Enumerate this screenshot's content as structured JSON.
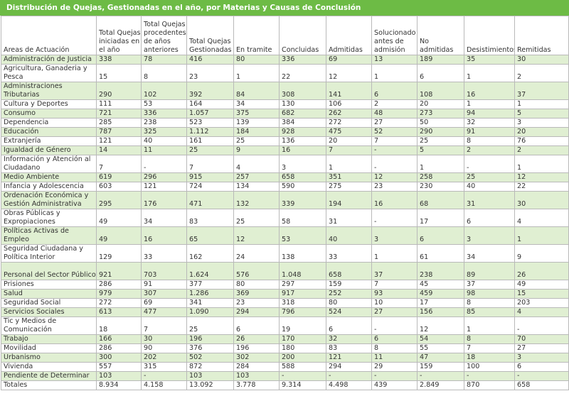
{
  "title": "Distribución de Quejas, Gestionadas en el año, por Materias y Causas de Conclusión",
  "headers": [
    "Areas de Actuación",
    "Total Quejas iniciadas en el año",
    "Total Quejas procedentes de años anteriores",
    "Total Quejas Gestionadas",
    "En tramite",
    "Concluidas",
    "Admitidas",
    "Solucionado antes de admisión",
    "No admitidas",
    "Desistimientos",
    "Remitidas"
  ],
  "rows": [
    {
      "area": "Administración de Justicia",
      "values": [
        "338",
        "78",
        "416",
        "80",
        "336",
        "69",
        "13",
        "189",
        "35",
        "30"
      ]
    },
    {
      "area": "Agricultura, Ganaderia y Pesca",
      "values": [
        "15",
        "8",
        "23",
        "1",
        "22",
        "12",
        "1",
        "6",
        "1",
        "2"
      ]
    },
    {
      "area": "Administraciones Tributarias",
      "values": [
        "290",
        "102",
        "392",
        "84",
        "308",
        "141",
        "6",
        "108",
        "16",
        "37"
      ]
    },
    {
      "area": "Cultura y Deportes",
      "values": [
        "111",
        "53",
        "164",
        "34",
        "130",
        "106",
        "2",
        "20",
        "1",
        "1"
      ]
    },
    {
      "area": "Consumo",
      "values": [
        "721",
        "336",
        "1.057",
        "375",
        "682",
        "262",
        "48",
        "273",
        "94",
        "5"
      ]
    },
    {
      "area": "Dependencia",
      "values": [
        "285",
        "238",
        "523",
        "139",
        "384",
        "272",
        "27",
        "50",
        "32",
        "3"
      ]
    },
    {
      "area": "Educación",
      "values": [
        "787",
        "325",
        "1.112",
        "184",
        "928",
        "475",
        "52",
        "290",
        "91",
        "20"
      ]
    },
    {
      "area": "Extranjería",
      "values": [
        "121",
        "40",
        "161",
        "25",
        "136",
        "20",
        "7",
        "25",
        "8",
        "76"
      ]
    },
    {
      "area": "Igualdad de Género",
      "values": [
        "14",
        "11",
        "25",
        "9",
        "16",
        "7",
        "-",
        "5",
        "2",
        "2"
      ]
    },
    {
      "area": "Información y Atención al Ciudadano",
      "values": [
        "7",
        "-",
        "7",
        "4",
        "3",
        "1",
        "-",
        "1",
        "-",
        "1"
      ]
    },
    {
      "area": "Medio Ambiente",
      "values": [
        "619",
        "296",
        "915",
        "257",
        "658",
        "351",
        "12",
        "258",
        "25",
        "12"
      ]
    },
    {
      "area": "Infancia y Adolescencia",
      "values": [
        "603",
        "121",
        "724",
        "134",
        "590",
        "275",
        "23",
        "230",
        "40",
        "22"
      ]
    },
    {
      "area": "Ordenación Económica y Gestión Administrativa",
      "values": [
        "295",
        "176",
        "471",
        "132",
        "339",
        "194",
        "16",
        "68",
        "31",
        "30"
      ]
    },
    {
      "area": "Obras Públicas y Expropiaciones",
      "values": [
        "49",
        "34",
        "83",
        "25",
        "58",
        "31",
        "-",
        "17",
        "6",
        "4"
      ]
    },
    {
      "area": "Políticas Activas de Empleo",
      "values": [
        "49",
        "16",
        "65",
        "12",
        "53",
        "40",
        "3",
        "6",
        "3",
        "1"
      ]
    },
    {
      "area": "Seguridad Ciudadana y Política Interior",
      "values": [
        "129",
        "33",
        "162",
        "24",
        "138",
        "33",
        "1",
        "61",
        "34",
        "9"
      ]
    },
    {
      "area": "Personal del Sector Público",
      "values": [
        "921",
        "703",
        "1.624",
        "576",
        "1.048",
        "658",
        "37",
        "238",
        "89",
        "26"
      ]
    },
    {
      "area": "Prisiones",
      "values": [
        "286",
        "91",
        "377",
        "80",
        "297",
        "159",
        "7",
        "45",
        "37",
        "49"
      ]
    },
    {
      "area": "Salud",
      "values": [
        "979",
        "307",
        "1.286",
        "369",
        "917",
        "252",
        "93",
        "459",
        "98",
        "15"
      ]
    },
    {
      "area": "Seguridad Social",
      "values": [
        "272",
        "69",
        "341",
        "23",
        "318",
        "80",
        "10",
        "17",
        "8",
        "203"
      ]
    },
    {
      "area": "Servicios Sociales",
      "values": [
        "613",
        "477",
        "1.090",
        "294",
        "796",
        "524",
        "27",
        "156",
        "85",
        "4"
      ]
    },
    {
      "area": "Tic y Medios de Comunicación",
      "values": [
        "18",
        "7",
        "25",
        "6",
        "19",
        "6",
        "-",
        "12",
        "1",
        "-"
      ]
    },
    {
      "area": "Trabajo",
      "values": [
        "166",
        "30",
        "196",
        "26",
        "170",
        "32",
        "6",
        "54",
        "8",
        "70"
      ]
    },
    {
      "area": "Movilidad",
      "values": [
        "286",
        "90",
        "376",
        "196",
        "180",
        "83",
        "8",
        "55",
        "7",
        "27"
      ]
    },
    {
      "area": "Urbanismo",
      "values": [
        "300",
        "202",
        "502",
        "302",
        "200",
        "121",
        "11",
        "47",
        "18",
        "3"
      ]
    },
    {
      "area": "Vivienda",
      "values": [
        "557",
        "315",
        "872",
        "284",
        "588",
        "294",
        "29",
        "159",
        "100",
        "6"
      ]
    },
    {
      "area": "Pendiente de Determinar",
      "values": [
        "103",
        "-",
        "103",
        "103",
        "-",
        "-",
        "-",
        "-",
        "-",
        "-"
      ]
    }
  ],
  "totals": {
    "label": "Totales",
    "values": [
      "8.934",
      "4.158",
      "13.092",
      "3.778",
      "9.314",
      "4.498",
      "439",
      "2.849",
      "870",
      "658"
    ]
  }
}
